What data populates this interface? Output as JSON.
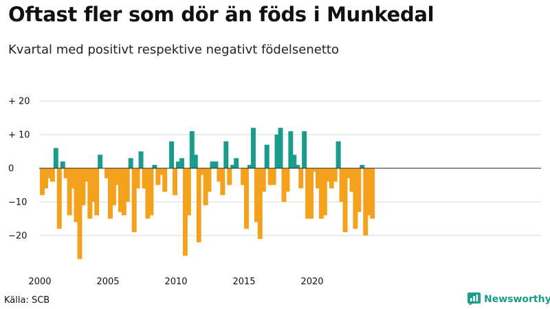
{
  "title": "Oftast fler som dör än föds i Munkedal",
  "subtitle": "Kvartal med positivt respektive negativt födelsenetto",
  "source": "Källa: SCB",
  "brand": "Newsworthy",
  "colors": {
    "positive": "#1a9b8c",
    "negative": "#f4a21d",
    "grid": "#d9d9d9",
    "zero": "#222222"
  },
  "chart_data": {
    "type": "bar",
    "start_year": 2000,
    "periods_per_year": 4,
    "ylim": [
      -28,
      22
    ],
    "yticks": [
      {
        "value": 20,
        "label": "+ 20"
      },
      {
        "value": 10,
        "label": "+ 10"
      },
      {
        "value": 0,
        "label": "0"
      },
      {
        "value": -10,
        "label": "−10"
      },
      {
        "value": -20,
        "label": "−20"
      }
    ],
    "xticks": [
      {
        "year": 2000,
        "label": "2000"
      },
      {
        "year": 2005,
        "label": "2005"
      },
      {
        "year": 2010,
        "label": "2010"
      },
      {
        "year": 2015,
        "label": "2015"
      },
      {
        "year": 2020,
        "label": "2020"
      }
    ],
    "values": [
      -8,
      -6,
      -3,
      -4,
      6,
      -18,
      2,
      -3,
      -14,
      -6,
      -16,
      -27,
      -11,
      -4,
      -15,
      -10,
      -14,
      4,
      0,
      -3,
      -15,
      -11,
      -5,
      -13,
      -14,
      -10,
      3,
      -19,
      -6,
      5,
      -6,
      -15,
      -14,
      1,
      -5,
      -2,
      -7,
      0,
      8,
      -8,
      2,
      3,
      -26,
      -14,
      11,
      4,
      -22,
      -2,
      -11,
      -7,
      2,
      2,
      -4,
      -8,
      8,
      -5,
      1,
      3,
      0,
      -5,
      -18,
      1,
      12,
      -16,
      -21,
      -7,
      7,
      -5,
      -5,
      10,
      12,
      -10,
      -7,
      11,
      4,
      1,
      -6,
      11,
      -15,
      -15,
      -1,
      -6,
      -15,
      -14,
      -4,
      -6,
      -4,
      8,
      -10,
      -19,
      -3,
      -7,
      -18,
      -13,
      1,
      -20,
      -14,
      -15
    ]
  }
}
